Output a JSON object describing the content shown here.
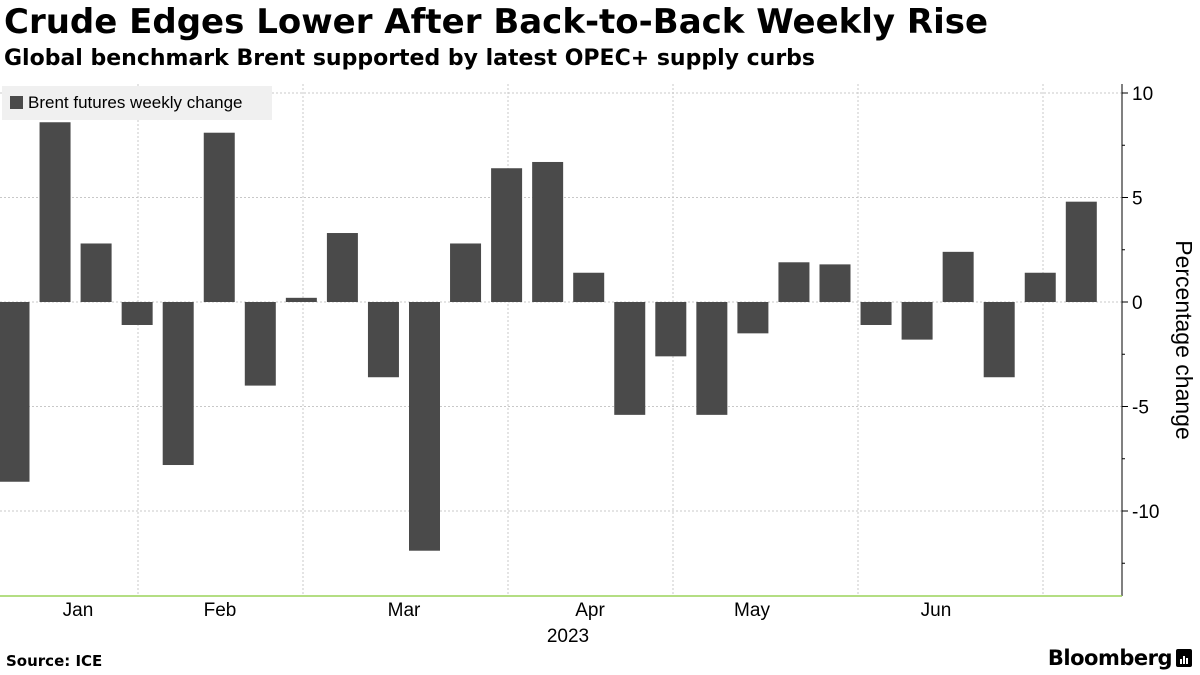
{
  "header": {
    "title": "Crude Edges Lower After Back-to-Back Weekly Rise",
    "subtitle": "Global benchmark Brent supported by latest OPEC+ supply curbs"
  },
  "footer": {
    "source": "Source: ICE",
    "brand": "Bloomberg"
  },
  "colors": {
    "bar": "#4a4a4a",
    "grid": "#c8c8c8",
    "baseline": "#9bd35a",
    "legend_bg": "#f0f0f0"
  },
  "chart_data": {
    "type": "bar",
    "title": "Crude Edges Lower After Back-to-Back Weekly Rise",
    "subtitle": "Global benchmark Brent supported by latest OPEC+ supply curbs",
    "legend": [
      "Brent futures weekly change"
    ],
    "legend_position": "top-left",
    "xlabel": "2023",
    "ylabel": "Percentage change",
    "y_axis_side": "right",
    "ylim": [
      -13.5,
      10.5
    ],
    "yticks": [
      10,
      5,
      0,
      -5,
      -10
    ],
    "ytick_labels": [
      "10",
      "5",
      "0",
      "-5",
      "-10"
    ],
    "grid": true,
    "x_month_labels": [
      "Jan",
      "Feb",
      "Mar",
      "Apr",
      "May",
      "Jun"
    ],
    "series": [
      {
        "name": "Brent futures weekly change",
        "values": [
          -8.6,
          8.6,
          2.8,
          -1.1,
          -7.8,
          8.1,
          -4.0,
          0.2,
          3.3,
          -3.6,
          -11.9,
          2.8,
          6.4,
          6.7,
          1.4,
          -5.4,
          -2.6,
          -5.4,
          -1.5,
          1.9,
          1.8,
          -1.1,
          -1.8,
          2.4,
          -3.6,
          1.4,
          4.8
        ]
      }
    ]
  }
}
